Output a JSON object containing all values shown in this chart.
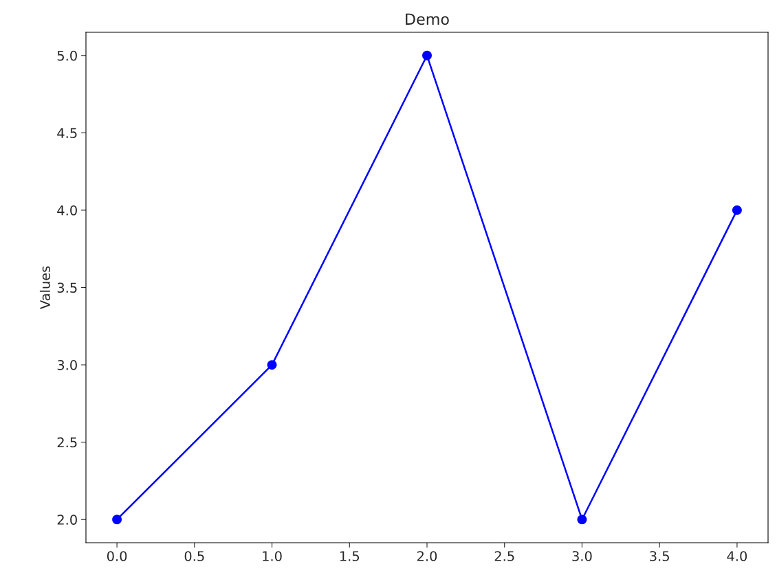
{
  "chart_data": {
    "type": "line",
    "title": "Demo",
    "ylabel": "Values",
    "x": [
      0,
      1,
      2,
      3,
      4
    ],
    "series": [
      {
        "color": "#0000ff",
        "values": [
          2,
          3,
          5,
          2,
          4
        ]
      }
    ],
    "xlim": [
      -0.2,
      4.2
    ],
    "ylim": [
      1.85,
      5.15
    ],
    "xticks": [
      {
        "value": 0,
        "label": "0.0"
      },
      {
        "value": 0.5,
        "label": "0.5"
      },
      {
        "value": 1,
        "label": "1.0"
      },
      {
        "value": 1.5,
        "label": "1.5"
      },
      {
        "value": 2,
        "label": "2.0"
      },
      {
        "value": 2.5,
        "label": "2.5"
      },
      {
        "value": 3,
        "label": "3.0"
      },
      {
        "value": 3.5,
        "label": "3.5"
      },
      {
        "value": 4,
        "label": "4.0"
      }
    ],
    "yticks": [
      {
        "value": 2,
        "label": "2.0"
      },
      {
        "value": 2.5,
        "label": "2.5"
      },
      {
        "value": 3,
        "label": "3.0"
      },
      {
        "value": 3.5,
        "label": "3.5"
      },
      {
        "value": 4,
        "label": "4.0"
      },
      {
        "value": 4.5,
        "label": "4.5"
      },
      {
        "value": 5,
        "label": "5.0"
      }
    ],
    "marker": "circle",
    "line_style": "solid",
    "grid": false,
    "legend": false
  }
}
